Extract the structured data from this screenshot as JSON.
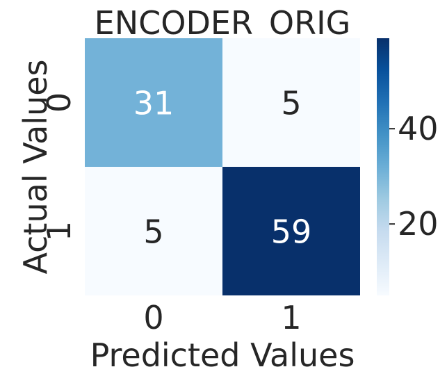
{
  "chart_data": {
    "type": "heatmap",
    "title": "ENCODER_ORIG",
    "xlabel": "Predicted Values",
    "ylabel": "Actual Values",
    "x_categories": [
      "0",
      "1"
    ],
    "y_categories": [
      "0",
      "1"
    ],
    "values": [
      [
        31,
        5
      ],
      [
        5,
        59
      ]
    ],
    "colormap": "Blues",
    "value_range": [
      5,
      59
    ],
    "colorbar": {
      "ticks": [
        20,
        40
      ],
      "tick_labels": [
        "20",
        "40"
      ]
    },
    "colors": {
      "low": "#f7fbff",
      "high": "#08306b",
      "text_light": "#ffffff",
      "text_dark": "#262626"
    }
  }
}
